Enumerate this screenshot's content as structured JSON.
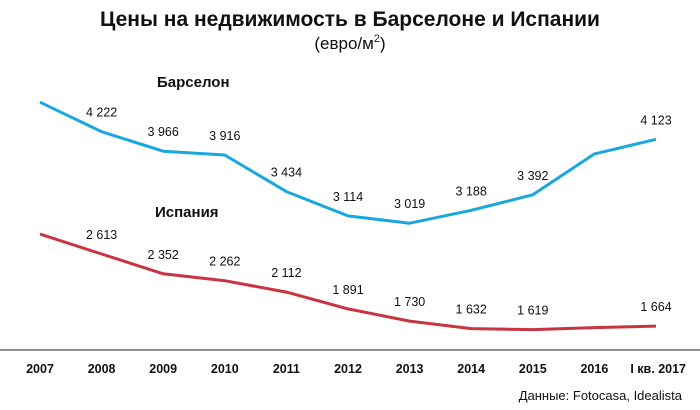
{
  "chart_data": {
    "type": "line",
    "title": "Цены на недвижимость в Барселоне и Испании",
    "subtitle_base": "(евро/м",
    "subtitle_sup": "2",
    "subtitle_end": ")",
    "categories": [
      "2007",
      "2008",
      "2009",
      "2010",
      "2011",
      "2012",
      "2013",
      "2014",
      "2015",
      "2016",
      "I кв. 2017"
    ],
    "series": [
      {
        "name": "Барселон",
        "color": "#1aa7e0",
        "values": [
          4610,
          4222,
          3966,
          3916,
          3434,
          3114,
          3019,
          3188,
          3392,
          3930,
          4123
        ],
        "labels": [
          "",
          "4 222",
          "3 966",
          "3 916",
          "3 434",
          "3 114",
          "3 019",
          "3 188",
          "3 392",
          "",
          "4 123"
        ]
      },
      {
        "name": "Испания",
        "color": "#c8343f",
        "values": [
          2875,
          2613,
          2352,
          2262,
          2112,
          1891,
          1730,
          1632,
          1619,
          1645,
          1664
        ],
        "labels": [
          "",
          "2 613",
          "2 352",
          "2 262",
          "2 112",
          "1 891",
          "1 730",
          "1 632",
          "1 619",
          "",
          "1 664"
        ]
      }
    ],
    "ylim": [
      1350,
      5100
    ],
    "grid": false,
    "source": "Данные: Fotocasa, Idealista"
  }
}
